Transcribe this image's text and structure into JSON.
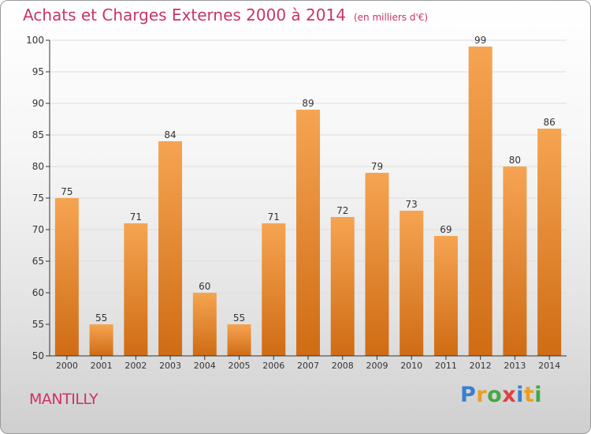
{
  "header": {
    "title": "Achats et Charges Externes 2000 à 2014",
    "unit": "(en milliers d'€)"
  },
  "footer": {
    "place": "MANTILLY",
    "logo_letters": [
      "P",
      "r",
      "o",
      "x",
      "i",
      "t",
      "i"
    ]
  },
  "colors": {
    "title": "#cc3366",
    "bar_top": "#f6a452",
    "bar_bottom": "#cf6c14",
    "axis": "#333333",
    "grid": "#dddddd"
  },
  "chart_data": {
    "type": "bar",
    "categories": [
      "2000",
      "2001",
      "2002",
      "2003",
      "2004",
      "2005",
      "2006",
      "2007",
      "2008",
      "2009",
      "2010",
      "2011",
      "2012",
      "2013",
      "2014"
    ],
    "values": [
      75,
      55,
      71,
      84,
      60,
      55,
      71,
      89,
      72,
      79,
      73,
      69,
      99,
      80,
      86
    ],
    "ylim": [
      50,
      100
    ],
    "yticks": [
      50,
      55,
      60,
      65,
      70,
      75,
      80,
      85,
      90,
      95,
      100
    ],
    "grid": true,
    "data_labels": true
  }
}
